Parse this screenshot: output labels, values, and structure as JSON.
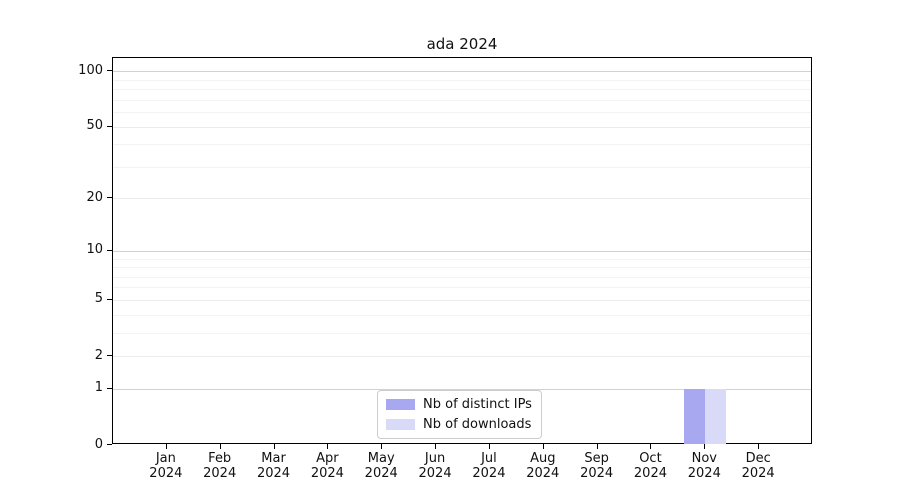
{
  "chart_data": {
    "type": "bar",
    "title": "ada 2024",
    "categories": [
      "Jan",
      "Feb",
      "Mar",
      "Apr",
      "May",
      "Jun",
      "Jul",
      "Aug",
      "Sep",
      "Oct",
      "Nov",
      "Dec"
    ],
    "category_year": "2024",
    "series": [
      {
        "name": "Nb of distinct IPs",
        "color": "#a8a8f0",
        "values": [
          0,
          0,
          0,
          0,
          0,
          0,
          0,
          0,
          0,
          0,
          1,
          0
        ]
      },
      {
        "name": "Nb of downloads",
        "color": "#d9d9f8",
        "values": [
          0,
          0,
          0,
          0,
          0,
          0,
          0,
          0,
          0,
          0,
          1,
          0
        ]
      }
    ],
    "xlabel": "",
    "ylabel": "",
    "y_scale": "log1p",
    "ylim": [
      0,
      118
    ],
    "yticks": [
      0,
      1,
      2,
      5,
      10,
      20,
      50,
      100
    ],
    "minor_gridlines": [
      3,
      4,
      6,
      7,
      8,
      9,
      30,
      40,
      60,
      70,
      80,
      90
    ],
    "grid": "on",
    "legend_position": "bottom-center",
    "colors": {
      "major_gridline": "#d2d2d2",
      "labeled_gridline": "#ececec",
      "minor_gridline": "#f3f3f3",
      "axis": "#000000",
      "text": "#111111"
    }
  }
}
